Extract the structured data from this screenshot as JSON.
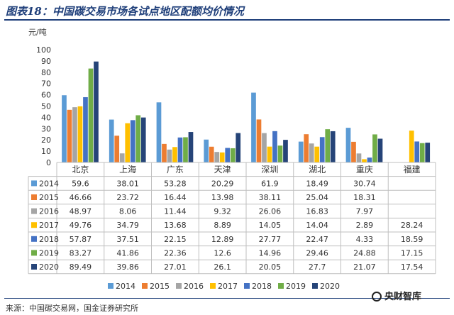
{
  "figure": {
    "title": "图表18：中国碳交易市场各试点地区配额均价情况",
    "source": "来源：中国碳交易网，国金证券研究所",
    "watermark": "央财智库"
  },
  "colors": {
    "title": "#1f3f7a",
    "series": [
      "#5b9bd5",
      "#ed7d31",
      "#a5a5a5",
      "#ffc000",
      "#4472c4",
      "#70ad47",
      "#264478"
    ]
  },
  "chart_data": {
    "type": "bar",
    "ylabel": "元/吨",
    "ylim": [
      0,
      100
    ],
    "yticks": [
      0,
      10,
      20,
      30,
      40,
      50,
      60,
      70,
      80,
      90,
      100
    ],
    "categories": [
      "北京",
      "上海",
      "广东",
      "天津",
      "深圳",
      "湖北",
      "重庆",
      "福建"
    ],
    "series": [
      {
        "name": "2014",
        "values": [
          59.6,
          38.01,
          53.28,
          20.29,
          61.9,
          18.49,
          30.74,
          null
        ]
      },
      {
        "name": "2015",
        "values": [
          46.66,
          23.72,
          16.44,
          13.98,
          38.11,
          25.04,
          18.31,
          null
        ]
      },
      {
        "name": "2016",
        "values": [
          48.97,
          8.06,
          11.44,
          9.32,
          26.06,
          16.83,
          7.97,
          null
        ]
      },
      {
        "name": "2017",
        "values": [
          49.76,
          34.79,
          13.68,
          8.89,
          14.05,
          14.04,
          2.89,
          28.24
        ]
      },
      {
        "name": "2018",
        "values": [
          57.87,
          37.51,
          22.15,
          12.89,
          27.77,
          22.47,
          4.33,
          18.59
        ]
      },
      {
        "name": "2019",
        "values": [
          83.27,
          41.86,
          22.36,
          12.6,
          14.96,
          29.46,
          24.88,
          17.15
        ]
      },
      {
        "name": "2020",
        "values": [
          89.49,
          39.86,
          27.01,
          26.1,
          20.05,
          27.7,
          21.07,
          17.54
        ]
      }
    ],
    "table": {
      "rows": [
        [
          "59.6",
          "38.01",
          "53.28",
          "20.29",
          "61.9",
          "18.49",
          "30.74",
          ""
        ],
        [
          "46.66",
          "23.72",
          "16.44",
          "13.98",
          "38.11",
          "25.04",
          "18.31",
          ""
        ],
        [
          "48.97",
          "8.06",
          "11.44",
          "9.32",
          "26.06",
          "16.83",
          "7.97",
          ""
        ],
        [
          "49.76",
          "34.79",
          "13.68",
          "8.89",
          "14.05",
          "14.04",
          "2.89",
          "28.24"
        ],
        [
          "57.87",
          "37.51",
          "22.15",
          "12.89",
          "27.77",
          "22.47",
          "4.33",
          "18.59"
        ],
        [
          "83.27",
          "41.86",
          "22.36",
          "12.6",
          "14.96",
          "29.46",
          "24.88",
          "17.15"
        ],
        [
          "89.49",
          "39.86",
          "27.01",
          "26.1",
          "20.05",
          "27.7",
          "21.07",
          "17.54"
        ]
      ]
    },
    "legend": "bottom",
    "grid": false
  }
}
